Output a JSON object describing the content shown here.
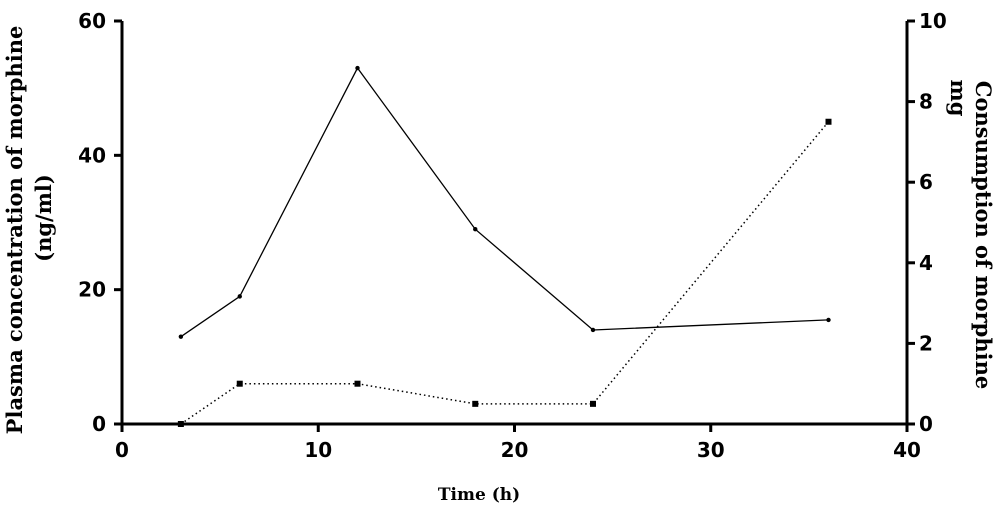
{
  "chart_data": {
    "type": "line",
    "xlabel": "Time (h)",
    "ylabel_left_line1": "Plasma concentration of morphine",
    "ylabel_left_line2": "(ng/ml)",
    "ylabel_right_line1": "Consumption of morphine",
    "ylabel_right_line2": "mg",
    "xlim": [
      0,
      40
    ],
    "ylim_left": [
      0,
      60
    ],
    "ylim_right": [
      0,
      10
    ],
    "x_ticks": [
      "0",
      "10",
      "20",
      "30",
      "40"
    ],
    "y_left_ticks": [
      "0",
      "20",
      "40",
      "60"
    ],
    "y_right_ticks": [
      "0",
      "2",
      "4",
      "6",
      "8",
      "10"
    ],
    "grid": false,
    "series": [
      {
        "axis": "left",
        "style": "solid",
        "x": [
          3,
          6,
          12,
          18,
          24,
          36
        ],
        "y": [
          13,
          19,
          53,
          29,
          14,
          15.5
        ]
      },
      {
        "axis": "right",
        "style": "dotted",
        "x": [
          3,
          6,
          12,
          18,
          24,
          36
        ],
        "y": [
          0,
          1,
          1,
          0.5,
          0.5,
          7.5
        ]
      }
    ]
  }
}
